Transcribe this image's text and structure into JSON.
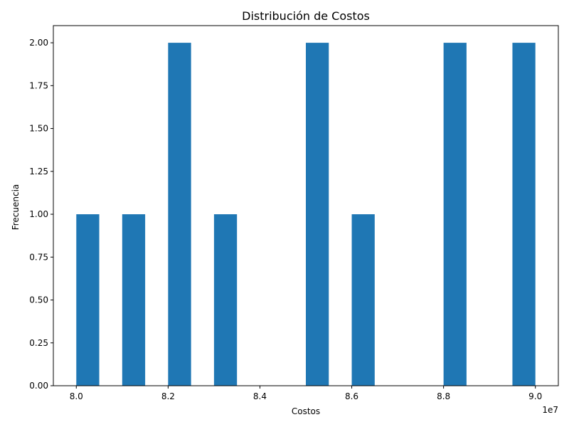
{
  "chart_data": {
    "type": "bar",
    "title": "Distribución de Costos",
    "xlabel": "Costos",
    "ylabel": "Frecuencia",
    "x_offset_label": "1e7",
    "xlim": [
      7.95,
      9.05
    ],
    "ylim": [
      0,
      2.1
    ],
    "bin_width": 0.05,
    "bins": [
      {
        "start": 8.0,
        "end": 8.05,
        "count": 1
      },
      {
        "start": 8.05,
        "end": 8.1,
        "count": 0
      },
      {
        "start": 8.1,
        "end": 8.15,
        "count": 1
      },
      {
        "start": 8.15,
        "end": 8.2,
        "count": 0
      },
      {
        "start": 8.2,
        "end": 8.25,
        "count": 2
      },
      {
        "start": 8.25,
        "end": 8.3,
        "count": 0
      },
      {
        "start": 8.3,
        "end": 8.35,
        "count": 1
      },
      {
        "start": 8.35,
        "end": 8.4,
        "count": 0
      },
      {
        "start": 8.4,
        "end": 8.45,
        "count": 0
      },
      {
        "start": 8.45,
        "end": 8.5,
        "count": 0
      },
      {
        "start": 8.5,
        "end": 8.55,
        "count": 2
      },
      {
        "start": 8.55,
        "end": 8.6,
        "count": 0
      },
      {
        "start": 8.6,
        "end": 8.65,
        "count": 1
      },
      {
        "start": 8.65,
        "end": 8.7,
        "count": 0
      },
      {
        "start": 8.7,
        "end": 8.75,
        "count": 0
      },
      {
        "start": 8.75,
        "end": 8.8,
        "count": 0
      },
      {
        "start": 8.8,
        "end": 8.85,
        "count": 2
      },
      {
        "start": 8.85,
        "end": 8.9,
        "count": 0
      },
      {
        "start": 8.9,
        "end": 8.95,
        "count": 0
      },
      {
        "start": 8.95,
        "end": 9.0,
        "count": 2
      }
    ],
    "x_ticks": [
      "8.0",
      "8.2",
      "8.4",
      "8.6",
      "8.8",
      "9.0"
    ],
    "y_ticks": [
      "0.00",
      "0.25",
      "0.50",
      "0.75",
      "1.00",
      "1.25",
      "1.50",
      "1.75",
      "2.00"
    ],
    "bar_color": "#1f77b4",
    "grid": false,
    "legend": "none"
  }
}
